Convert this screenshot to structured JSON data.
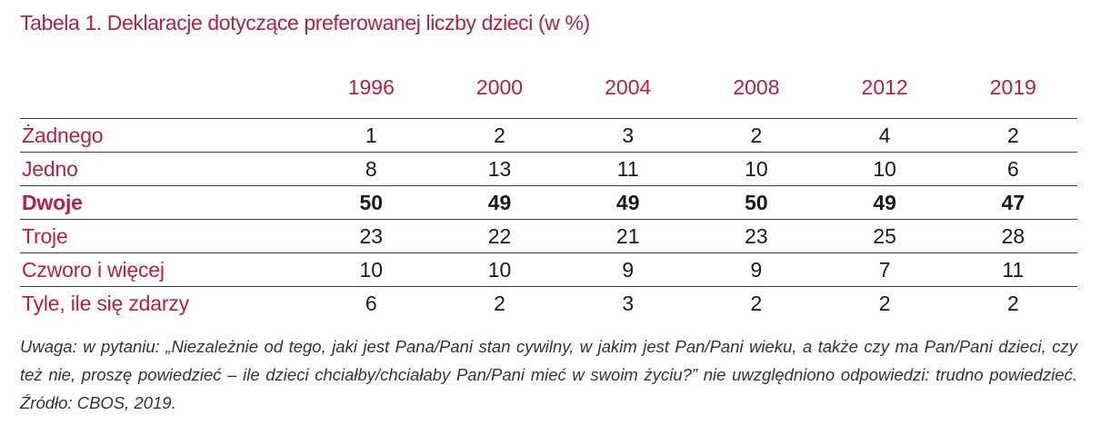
{
  "title": "Tabela 1. Deklaracje dotyczące preferowanej liczby dzieci (w %)",
  "table": {
    "columns": [
      "1996",
      "2000",
      "2004",
      "2008",
      "2012",
      "2019"
    ],
    "rows": [
      {
        "label": "Żadnego",
        "values": [
          "1",
          "2",
          "3",
          "2",
          "4",
          "2"
        ],
        "bold": false
      },
      {
        "label": "Jedno",
        "values": [
          "8",
          "13",
          "11",
          "10",
          "10",
          "6"
        ],
        "bold": false
      },
      {
        "label": "Dwoje",
        "values": [
          "50",
          "49",
          "49",
          "50",
          "49",
          "47"
        ],
        "bold": true
      },
      {
        "label": "Troje",
        "values": [
          "23",
          "22",
          "21",
          "23",
          "25",
          "28"
        ],
        "bold": false
      },
      {
        "label": "Czworo i więcej",
        "values": [
          "10",
          "10",
          "9",
          "9",
          "7",
          "11"
        ],
        "bold": false
      },
      {
        "label": "Tyle, ile się zdarzy",
        "values": [
          "6",
          "2",
          "3",
          "2",
          "2",
          "2"
        ],
        "bold": false
      }
    ]
  },
  "note": "Uwaga: w pytaniu: „Niezależnie od tego, jaki jest Pana/Pani stan cywilny, w jakim jest Pan/Pani wieku, a także czy ma Pan/Pani dzieci, czy też nie, proszę powiedzieć – ile dzieci chciałby/chciałaby Pan/Pani mieć w swoim życiu?” nie uwzględniono odpowiedzi: trudno powiedzieć. Źródło: CBOS, 2019.",
  "colors": {
    "accent": "#b0224d",
    "text": "#1a1a1a",
    "rule": "#3a3a3a"
  }
}
